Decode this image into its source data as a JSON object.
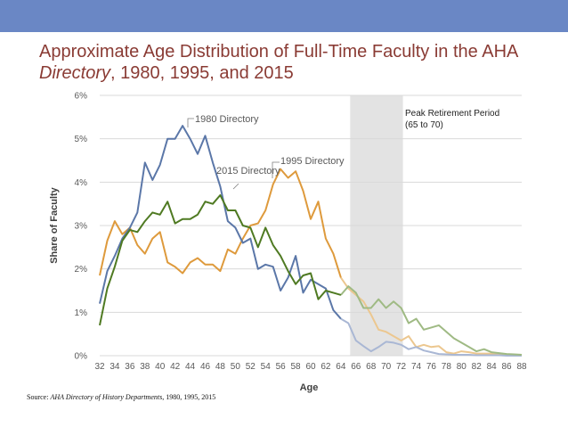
{
  "header": {
    "title_part1": "Approximate Age Distribution of Full-Time Faculty in the AHA",
    "title_italic": "Directory",
    "title_part2": ", 1980, 1995, and 2015"
  },
  "source": {
    "label": "Source:",
    "italic": "AHA Directory of History Departments",
    "rest": ", 1980, 1995, 2015"
  },
  "colors": {
    "band": "#6a87c5",
    "title": "#8a3b34",
    "series_1980": "#5b77a8",
    "series_1995": "#de9a3c",
    "series_2015": "#4f7a22",
    "series_1980_faded": "#a9b7d4",
    "series_1995_faded": "#ecc78f",
    "series_2015_faded": "#9fba84",
    "shade": "#e3e3e3",
    "grid": "#d9d9d9"
  },
  "chart_data": {
    "type": "line",
    "xlabel": "Age",
    "ylabel": "Share of Faculty",
    "xlim": [
      32,
      88
    ],
    "ylim": [
      0,
      6
    ],
    "x_ticks": [
      32,
      34,
      36,
      38,
      40,
      42,
      44,
      46,
      48,
      50,
      52,
      54,
      56,
      58,
      60,
      62,
      64,
      66,
      68,
      70,
      72,
      74,
      76,
      78,
      80,
      82,
      84,
      86,
      88
    ],
    "y_ticks": [
      0,
      1,
      2,
      3,
      4,
      5,
      6
    ],
    "y_tick_labels": [
      "0%",
      "1%",
      "2%",
      "3%",
      "4%",
      "5%",
      "6%"
    ],
    "grid": "horizontal",
    "shaded_region": {
      "x_start": 65,
      "x_end": 70,
      "label_line1": "Peak Retirement Period",
      "label_line2": "(65 to 70)"
    },
    "x": [
      32,
      33,
      34,
      35,
      36,
      37,
      38,
      39,
      40,
      41,
      42,
      43,
      44,
      45,
      46,
      47,
      48,
      49,
      50,
      51,
      52,
      53,
      54,
      55,
      56,
      57,
      58,
      59,
      60,
      61,
      62,
      63,
      64,
      65,
      66,
      67,
      68,
      69,
      70,
      71,
      72,
      73,
      74,
      75,
      76,
      77,
      78,
      79,
      80,
      81,
      82,
      83,
      84,
      85,
      86,
      87,
      88
    ],
    "series": [
      {
        "name": "1980 Directory",
        "label": "1980 Directory",
        "values": [
          1.2,
          1.95,
          2.3,
          2.7,
          2.95,
          3.3,
          4.45,
          4.05,
          4.4,
          5.0,
          5.0,
          5.3,
          5.0,
          4.65,
          5.07,
          4.45,
          3.9,
          3.1,
          2.95,
          2.6,
          2.7,
          2.0,
          2.1,
          2.05,
          1.5,
          1.8,
          2.3,
          1.45,
          1.75,
          1.65,
          1.55,
          1.05,
          0.85,
          0.75,
          0.35,
          0.22,
          0.1,
          0.2,
          0.32,
          0.3,
          0.25,
          0.15,
          0.2,
          0.12,
          0.08,
          0.04,
          0.03,
          0.02,
          0.02,
          0.02,
          0.01,
          0.01,
          0.01,
          0.01,
          0.0,
          0.0,
          0.0
        ]
      },
      {
        "name": "1995 Directory",
        "label": "1995 Directory",
        "values": [
          1.85,
          2.65,
          3.1,
          2.8,
          2.95,
          2.55,
          2.35,
          2.7,
          2.85,
          2.15,
          2.05,
          1.9,
          2.15,
          2.25,
          2.1,
          2.1,
          1.95,
          2.45,
          2.35,
          2.7,
          3.0,
          3.05,
          3.35,
          3.95,
          4.3,
          4.1,
          4.25,
          3.8,
          3.15,
          3.55,
          2.7,
          2.35,
          1.8,
          1.55,
          1.4,
          1.25,
          0.95,
          0.6,
          0.55,
          0.45,
          0.35,
          0.45,
          0.2,
          0.25,
          0.2,
          0.22,
          0.08,
          0.05,
          0.1,
          0.08,
          0.05,
          0.05,
          0.05,
          0.02,
          0.02,
          0.02,
          0.01
        ]
      },
      {
        "name": "2015 Directory",
        "label": "2015 Directory",
        "values": [
          0.7,
          1.55,
          2.05,
          2.65,
          2.9,
          2.85,
          3.1,
          3.3,
          3.25,
          3.55,
          3.05,
          3.15,
          3.15,
          3.25,
          3.55,
          3.5,
          3.7,
          3.35,
          3.35,
          3.0,
          2.95,
          2.5,
          2.95,
          2.55,
          2.3,
          1.95,
          1.65,
          1.85,
          1.9,
          1.3,
          1.5,
          1.45,
          1.4,
          1.6,
          1.45,
          1.1,
          1.1,
          1.3,
          1.1,
          1.25,
          1.1,
          0.75,
          0.85,
          0.6,
          0.65,
          0.7,
          0.55,
          0.4,
          0.3,
          0.2,
          0.1,
          0.15,
          0.08,
          0.06,
          0.04,
          0.03,
          0.02
        ]
      }
    ]
  }
}
